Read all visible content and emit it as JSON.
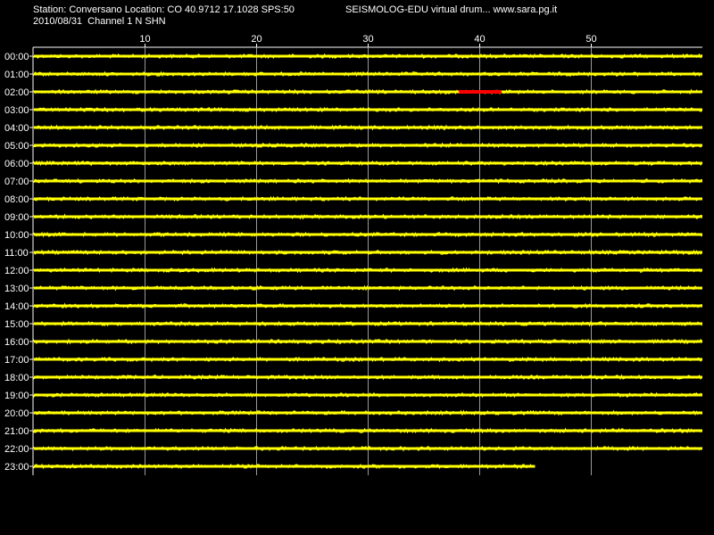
{
  "header": {
    "station_line": "Station: Conversano Location: CO 40.9712 17.1028 SPS:50",
    "brand_line": "SEISMOLOG-EDU virtual drum... www.sara.pg.it",
    "date_line": "2010/08/31  Channel 1 N SHN"
  },
  "chart_data": {
    "type": "line",
    "title": "",
    "xlabel": "",
    "ylabel": "",
    "x_ticks": [
      10,
      20,
      30,
      40,
      50
    ],
    "xlim": [
      0,
      60
    ],
    "grid": true,
    "rows": [
      "00:00",
      "01:00",
      "02:00",
      "03:00",
      "04:00",
      "05:00",
      "06:00",
      "07:00",
      "08:00",
      "09:00",
      "10:00",
      "11:00",
      "12:00",
      "13:00",
      "14:00",
      "15:00",
      "16:00",
      "17:00",
      "18:00",
      "19:00",
      "20:00",
      "21:00",
      "22:00",
      "23:00"
    ],
    "row_end_minute": [
      60,
      60,
      60,
      60,
      60,
      60,
      60,
      60,
      60,
      60,
      60,
      60,
      60,
      60,
      60,
      60,
      60,
      60,
      60,
      60,
      60,
      60,
      60,
      45
    ],
    "trace_color": "#ffff00",
    "event_color": "#ff0000",
    "events": [
      {
        "row": "02:00",
        "start_minute": 38.2,
        "end_minute": 42.0
      }
    ],
    "background_color": "#000000",
    "grid_color": "#ffffff"
  }
}
